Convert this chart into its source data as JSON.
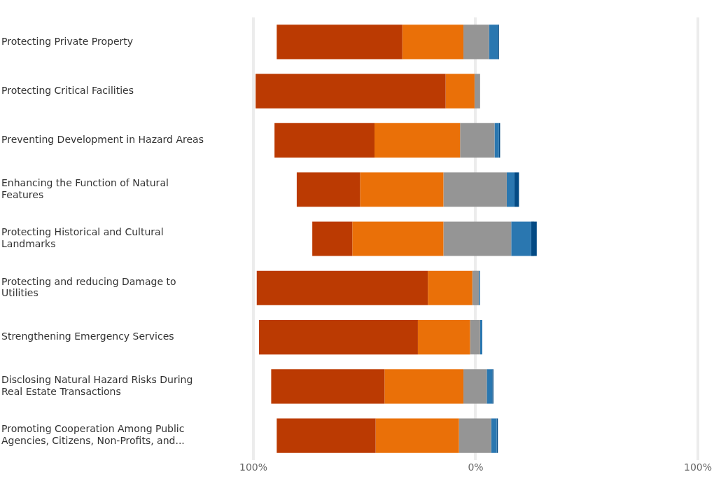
{
  "chart_data": {
    "type": "bar",
    "orientation": "horizontal",
    "categories": [
      "Protecting Private Property",
      "Protecting Critical Facilities",
      "Preventing Development in Hazard Areas",
      "Enhancing the Function of Natural Features",
      "Protecting Historical and Cultural Landmarks",
      "Protecting and reducing Damage to Utilities",
      "Strengthening Emergency Services",
      "Disclosing Natural Hazard Risks During Real Estate Transactions",
      "Promoting Cooperation Among Public Agencies, Citizens, Non-Profits, and..."
    ],
    "series": [
      {
        "color": "#bb3a02",
        "values": [
          56.5,
          85.5,
          45,
          28.5,
          18,
          77,
          71.5,
          51,
          44.5
        ],
        "base": [
          -89.5,
          -99,
          -90.5,
          -80.5,
          -73.5,
          -98.5,
          -97.5,
          -92,
          -89.5
        ]
      },
      {
        "color": "#ea7008",
        "values": [
          27.5,
          13,
          38.5,
          37.5,
          41,
          20,
          23.5,
          35.5,
          37.5
        ],
        "base": [
          -33,
          -13.5,
          -45.5,
          -52,
          -55.5,
          -21.5,
          -26,
          -41,
          -45
        ]
      },
      {
        "color": "#959595",
        "values": [
          11.5,
          2.5,
          15.5,
          28.5,
          30.5,
          3,
          4.5,
          10.5,
          14.5
        ],
        "base": [
          -5.5,
          -0.5,
          -7,
          -14.5,
          -14.5,
          -1.5,
          -2.5,
          -5.5,
          -7.5
        ]
      },
      {
        "color": "#2a77b0",
        "values": [
          4,
          null,
          2,
          3.5,
          9,
          0.5,
          1,
          2.5,
          2.5
        ],
        "base": [
          6,
          null,
          8.5,
          14,
          16,
          1.5,
          2,
          5,
          7
        ]
      },
      {
        "color": "#034a84",
        "values": [
          0.5,
          null,
          0.5,
          2,
          2.5,
          null,
          null,
          0.5,
          0.5
        ],
        "base": [
          10,
          null,
          10.5,
          17.5,
          25,
          null,
          null,
          7.5,
          9.5
        ]
      }
    ],
    "xlim": [
      -100,
      100
    ],
    "xticks": [
      {
        "value": -100,
        "label": "100%"
      },
      {
        "value": 0,
        "label": "0%"
      },
      {
        "value": 100,
        "label": "100%"
      }
    ],
    "grid": "x",
    "legend": false
  }
}
